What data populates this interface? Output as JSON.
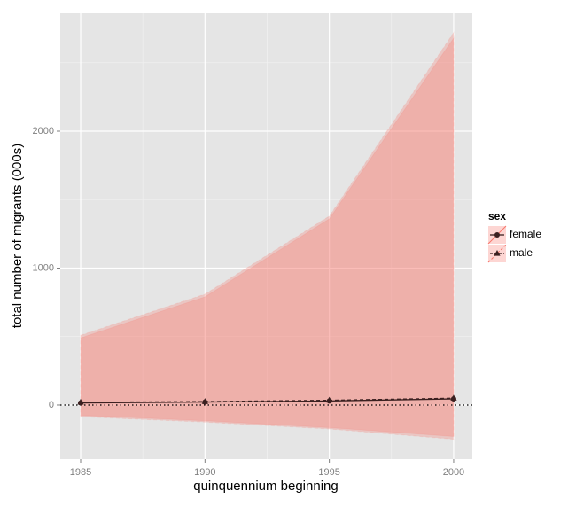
{
  "chart_data": {
    "type": "ribbon-line",
    "x_label": "quinquennium beginning",
    "y_label": "total number of migrants (000s)",
    "x": [
      1985,
      1990,
      1995,
      2000
    ],
    "xlim": [
      1984.18,
      2000.75
    ],
    "ylim": [
      -395,
      2861
    ],
    "xticks": [
      1985,
      1990,
      1995,
      2000
    ],
    "yticks": [
      0,
      1000,
      2000
    ],
    "minor_xticks": [
      1987.5,
      1992.5,
      1997.5
    ],
    "minor_yticks": [
      500,
      1500,
      2500
    ],
    "grid": true,
    "hline": 0,
    "legend_title": "sex",
    "legend_position": "right",
    "series": [
      {
        "name": "female",
        "color": "#3b2020",
        "ribbon_color": "#f8766d",
        "linestyle": "solid",
        "marker": "circle",
        "values": [
          15,
          22,
          30,
          45
        ],
        "lower": [
          -75,
          -115,
          -165,
          -230
        ],
        "upper": [
          490,
          790,
          1360,
          2680
        ]
      },
      {
        "name": "male",
        "color": "#3b2020",
        "ribbon_color": "#f8766d",
        "linestyle": "dashed",
        "marker": "triangle",
        "values": [
          20,
          25,
          35,
          50
        ],
        "lower": [
          -85,
          -125,
          -175,
          -250
        ],
        "upper": [
          510,
          810,
          1380,
          2720
        ]
      }
    ]
  }
}
